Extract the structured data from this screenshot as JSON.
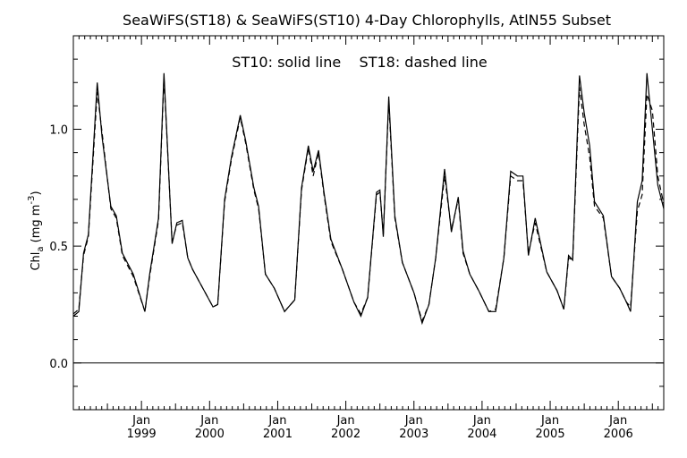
{
  "chart_data": {
    "type": "line",
    "title": "SeaWiFS(ST18) & SeaWiFS(ST10) 4-Day Chlorophylls, AtlN55 Subset",
    "annotation": "ST10: solid line    ST18: dashed line",
    "ylabel": {
      "main": "Chl",
      "sub": "a",
      "unit": " (mg m",
      "sup": "-3",
      "close": ")"
    },
    "ylim": [
      -0.2,
      1.4
    ],
    "yticks": [
      -0.2,
      -0.1,
      0.0,
      0.1,
      0.2,
      0.3,
      0.4,
      0.5,
      0.6,
      0.7,
      0.8,
      0.9,
      1.0,
      1.1,
      1.2,
      1.3,
      1.4
    ],
    "ytick_labels": [
      {
        "value": 0.0,
        "label": "0.0"
      },
      {
        "value": 0.5,
        "label": "0.5"
      },
      {
        "value": 1.0,
        "label": "1.0"
      }
    ],
    "xlim": [
      1998.0,
      2006.667
    ],
    "xtick_labels": [
      {
        "x": 1999.0,
        "month": "Jan",
        "year": "1999"
      },
      {
        "x": 2000.0,
        "month": "Jan",
        "year": "2000"
      },
      {
        "x": 2001.0,
        "month": "Jan",
        "year": "2001"
      },
      {
        "x": 2002.0,
        "month": "Jan",
        "year": "2002"
      },
      {
        "x": 2003.0,
        "month": "Jan",
        "year": "2003"
      },
      {
        "x": 2004.0,
        "month": "Jan",
        "year": "2004"
      },
      {
        "x": 2005.0,
        "month": "Jan",
        "year": "2005"
      },
      {
        "x": 2006.0,
        "month": "Jan",
        "year": "2006"
      }
    ],
    "reference_line_y": 0.0,
    "series": [
      {
        "style": "solid",
        "x": [
          1998.0,
          1998.08,
          1998.15,
          1998.22,
          1998.35,
          1998.42,
          1998.55,
          1998.63,
          1998.72,
          1998.88,
          1999.05,
          1999.12,
          1999.25,
          1999.33,
          1999.45,
          1999.52,
          1999.6,
          1999.68,
          1999.75,
          1999.9,
          2000.05,
          2000.12,
          2000.22,
          2000.32,
          2000.45,
          2000.53,
          2000.65,
          2000.72,
          2000.82,
          2000.95,
          2001.1,
          2001.25,
          2001.35,
          2001.45,
          2001.52,
          2001.6,
          2001.68,
          2001.78,
          2001.95,
          2002.12,
          2002.22,
          2002.32,
          2002.45,
          2002.5,
          2002.55,
          2002.63,
          2002.72,
          2002.83,
          2003.0,
          2003.12,
          2003.22,
          2003.32,
          2003.45,
          2003.55,
          2003.65,
          2003.72,
          2003.82,
          2003.95,
          2004.1,
          2004.2,
          2004.32,
          2004.42,
          2004.52,
          2004.6,
          2004.68,
          2004.78,
          2004.95,
          2005.1,
          2005.2,
          2005.27,
          2005.33,
          2005.43,
          2005.5,
          2005.58,
          2005.65,
          2005.78,
          2005.9,
          2006.02,
          2006.12,
          2006.18,
          2006.28,
          2006.35,
          2006.42,
          2006.5,
          2006.58,
          2006.667
        ],
        "y": [
          0.2,
          0.22,
          0.47,
          0.55,
          1.2,
          0.97,
          0.67,
          0.63,
          0.47,
          0.38,
          0.22,
          0.38,
          0.62,
          1.24,
          0.51,
          0.6,
          0.61,
          0.45,
          0.4,
          0.32,
          0.24,
          0.25,
          0.7,
          0.88,
          1.06,
          0.95,
          0.75,
          0.67,
          0.38,
          0.32,
          0.22,
          0.27,
          0.75,
          0.93,
          0.82,
          0.91,
          0.73,
          0.53,
          0.4,
          0.26,
          0.2,
          0.28,
          0.73,
          0.74,
          0.54,
          1.14,
          0.63,
          0.43,
          0.3,
          0.17,
          0.25,
          0.45,
          0.83,
          0.56,
          0.71,
          0.48,
          0.38,
          0.31,
          0.22,
          0.22,
          0.45,
          0.82,
          0.8,
          0.8,
          0.46,
          0.62,
          0.39,
          0.31,
          0.23,
          0.46,
          0.44,
          1.23,
          1.07,
          0.93,
          0.69,
          0.63,
          0.37,
          0.32,
          0.26,
          0.22,
          0.69,
          0.78,
          1.24,
          1.0,
          0.76,
          0.66
        ]
      },
      {
        "style": "dashed",
        "x": [
          1998.0,
          1998.08,
          1998.15,
          1998.22,
          1998.35,
          1998.42,
          1998.55,
          1998.63,
          1998.72,
          1998.88,
          1999.05,
          1999.12,
          1999.25,
          1999.33,
          1999.45,
          1999.52,
          1999.6,
          1999.68,
          1999.75,
          1999.9,
          2000.05,
          2000.12,
          2000.22,
          2000.32,
          2000.45,
          2000.53,
          2000.65,
          2000.72,
          2000.82,
          2000.95,
          2001.1,
          2001.25,
          2001.35,
          2001.45,
          2001.52,
          2001.6,
          2001.68,
          2001.78,
          2001.95,
          2002.12,
          2002.22,
          2002.32,
          2002.45,
          2002.5,
          2002.55,
          2002.63,
          2002.72,
          2002.83,
          2003.0,
          2003.12,
          2003.22,
          2003.32,
          2003.45,
          2003.55,
          2003.65,
          2003.72,
          2003.82,
          2003.95,
          2004.1,
          2004.2,
          2004.32,
          2004.42,
          2004.52,
          2004.6,
          2004.68,
          2004.78,
          2004.95,
          2005.1,
          2005.2,
          2005.27,
          2005.33,
          2005.43,
          2005.5,
          2005.58,
          2005.65,
          2005.78,
          2005.9,
          2006.02,
          2006.12,
          2006.18,
          2006.28,
          2006.35,
          2006.42,
          2006.5,
          2006.58,
          2006.667
        ],
        "y": [
          0.21,
          0.23,
          0.46,
          0.54,
          1.16,
          0.99,
          0.66,
          0.62,
          0.46,
          0.37,
          0.22,
          0.37,
          0.61,
          1.22,
          0.52,
          0.59,
          0.6,
          0.45,
          0.4,
          0.32,
          0.24,
          0.25,
          0.69,
          0.87,
          1.05,
          0.94,
          0.74,
          0.66,
          0.38,
          0.32,
          0.22,
          0.27,
          0.74,
          0.92,
          0.8,
          0.9,
          0.72,
          0.52,
          0.4,
          0.26,
          0.21,
          0.28,
          0.72,
          0.73,
          0.55,
          1.12,
          0.62,
          0.43,
          0.3,
          0.18,
          0.25,
          0.45,
          0.8,
          0.57,
          0.7,
          0.47,
          0.38,
          0.31,
          0.22,
          0.23,
          0.45,
          0.8,
          0.78,
          0.78,
          0.47,
          0.6,
          0.39,
          0.31,
          0.23,
          0.45,
          0.44,
          1.18,
          1.02,
          0.88,
          0.67,
          0.62,
          0.37,
          0.32,
          0.26,
          0.24,
          0.65,
          0.72,
          1.15,
          1.08,
          0.8,
          0.68
        ]
      }
    ]
  }
}
